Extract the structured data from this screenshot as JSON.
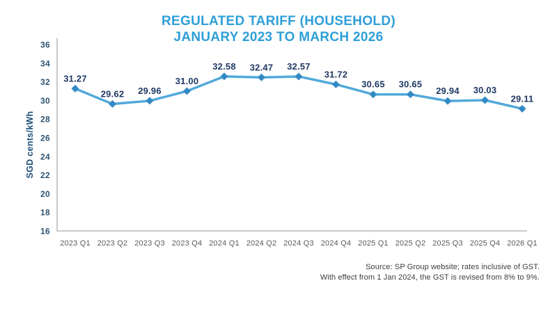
{
  "title": {
    "line1": "REGULATED TARIFF (HOUSEHOLD)",
    "line2": "JANUARY 2023 TO MARCH 2026"
  },
  "y_axis_label": "SGD cents/kWh",
  "source": {
    "line1": "Source: SP Group website; rates inclusive of GST.",
    "line2": "With effect from 1 Jan 2024, the GST is revised from 8% to 9%."
  },
  "colors": {
    "title": "#2E9FD9",
    "line": "#52A9DA",
    "marker": "#3389C4",
    "data_label": "#1F3864",
    "y_tick": "#2E536F",
    "x_tick": "#5A5A5A",
    "axis_line": "#C8C8C8",
    "y_axis_label": "#1F4E79",
    "source_text": "#3C3C3C"
  },
  "chart_data": {
    "type": "line",
    "title": "REGULATED TARIFF (HOUSEHOLD) JANUARY 2023 TO MARCH 2026",
    "xlabel": "",
    "ylabel": "SGD cents/kWh",
    "categories": [
      "2023 Q1",
      "2023 Q2",
      "2023 Q3",
      "2023 Q4",
      "2024 Q1",
      "2024 Q2",
      "2024 Q3",
      "2024 Q4",
      "2025 Q1",
      "2025 Q2",
      "2025 Q3",
      "2025 Q4",
      "2026 Q1"
    ],
    "values": [
      31.27,
      29.62,
      29.96,
      31.0,
      32.58,
      32.47,
      32.57,
      31.72,
      30.65,
      30.65,
      29.94,
      30.03,
      29.11
    ],
    "data_labels": [
      "31.27",
      "29.62",
      "29.96",
      "31.00",
      "32.58",
      "32.47",
      "32.57",
      "31.72",
      "30.65",
      "30.65",
      "29.94",
      "30.03",
      "29.11"
    ],
    "ylim": [
      16,
      36
    ],
    "yticks": [
      16,
      18,
      20,
      22,
      24,
      26,
      28,
      30,
      32,
      34,
      36
    ],
    "grid": false,
    "legend": "none",
    "marker": "diamond"
  }
}
